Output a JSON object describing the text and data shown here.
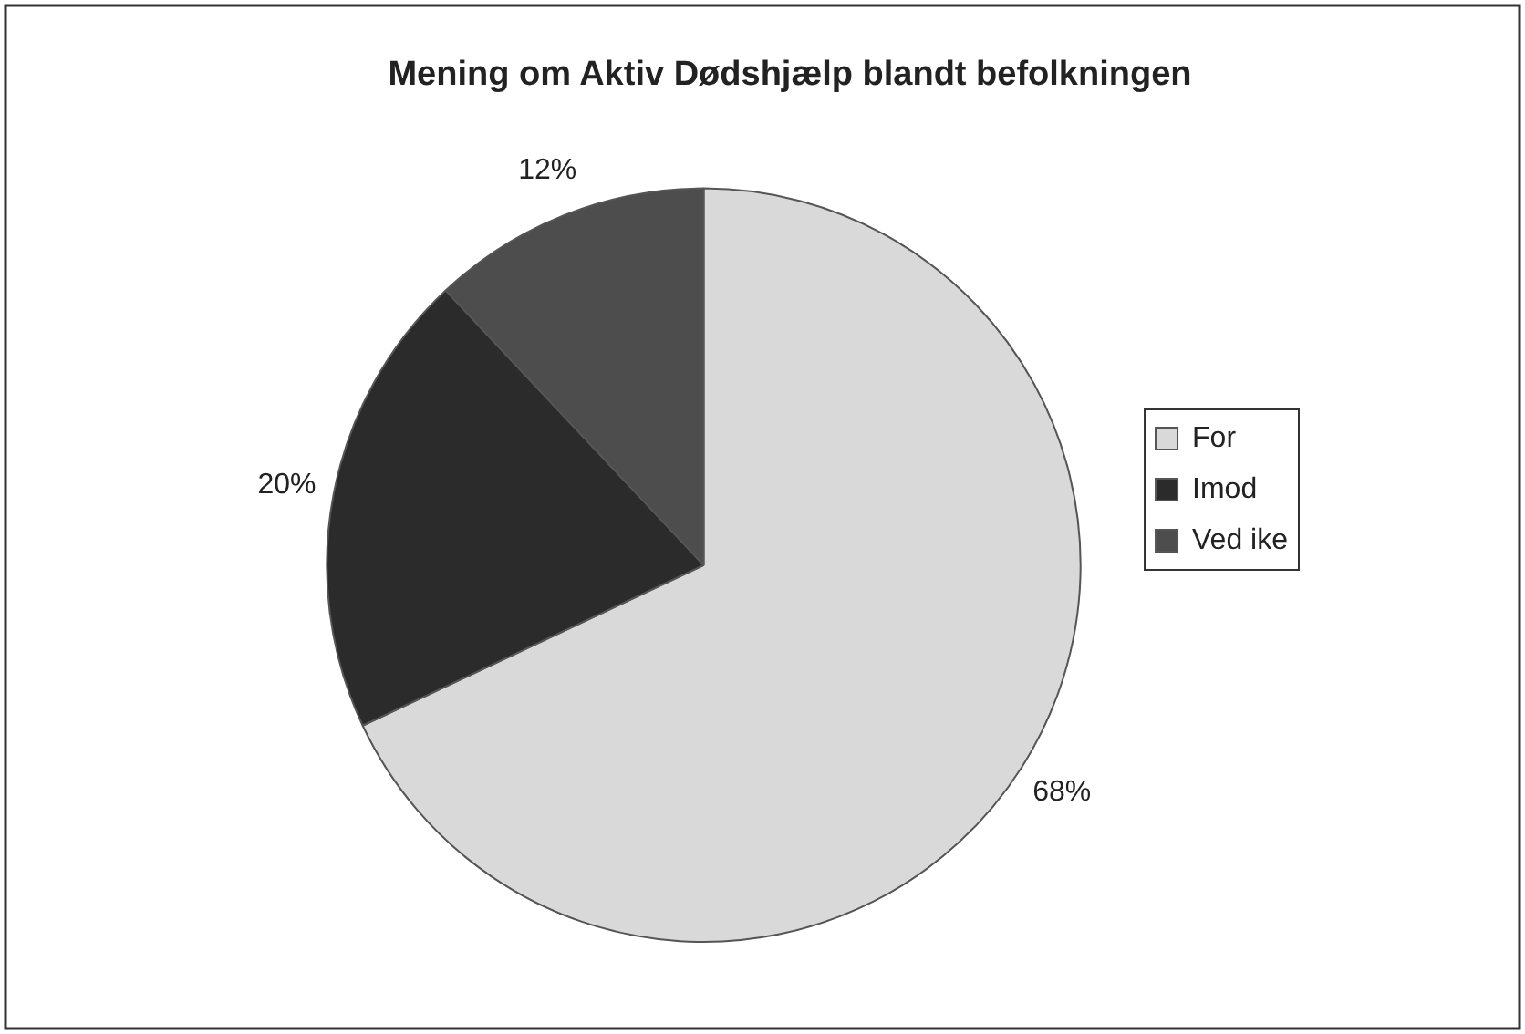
{
  "chart_data": {
    "type": "pie",
    "title": "Mening om Aktiv Dødshjælp blandt befolkningen",
    "categories": [
      "For",
      "Imod",
      "Ved ike"
    ],
    "values": [
      68,
      20,
      12
    ],
    "colors": [
      "#d9d9d9",
      "#2b2b2b",
      "#4d4d4d"
    ],
    "value_labels": [
      "68%",
      "20%",
      "12%"
    ],
    "legend": "right"
  }
}
